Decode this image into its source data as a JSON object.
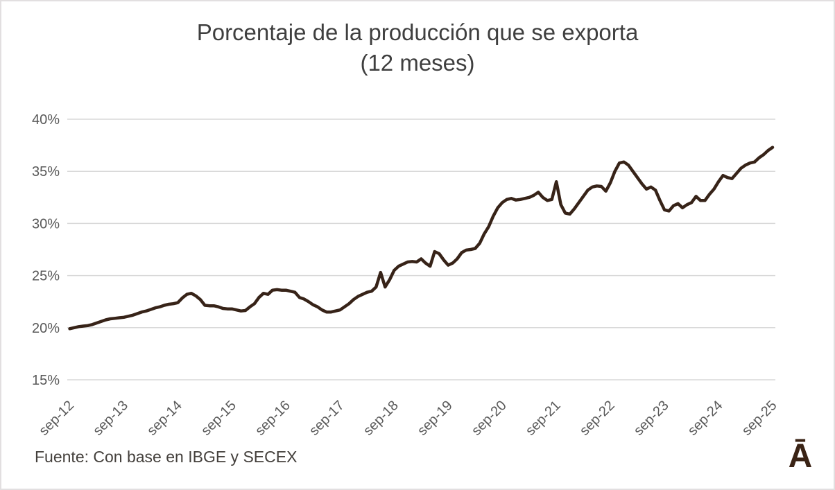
{
  "chart": {
    "title": "Porcentaje de la producción que se exporta",
    "subtitle": "(12 meses)",
    "source": "Fuente: Con base en IBGE y SECEX",
    "logo_glyph": "Ā"
  },
  "chart_data": {
    "type": "line",
    "title": "Porcentaje de la producción que se exporta",
    "subtitle": "(12 meses)",
    "source": "Fuente: Con base en IBGE y SECEX",
    "x_unit": "month",
    "x_start": "sep-12",
    "x_end": "sep-25",
    "x_tick_every_n_points": 12,
    "x_tick_labels": [
      "sep-12",
      "sep-13",
      "sep-14",
      "sep-15",
      "sep-16",
      "sep-17",
      "sep-18",
      "sep-19",
      "sep-20",
      "sep-21",
      "sep-22",
      "sep-23",
      "sep-24",
      "sep-25"
    ],
    "ylim": [
      15,
      40
    ],
    "yticks": [
      40,
      35,
      30,
      25,
      20,
      15
    ],
    "ytick_labels": [
      "40%",
      "35%",
      "30%",
      "25%",
      "20%",
      "15%"
    ],
    "grid": true,
    "legend": false,
    "series": [
      {
        "name": "Porcentaje de la producción que se exporta (12 meses)",
        "values": [
          19.9,
          20.0,
          20.1,
          20.15,
          20.2,
          20.3,
          20.45,
          20.6,
          20.75,
          20.85,
          20.9,
          20.95,
          21.0,
          21.1,
          21.2,
          21.35,
          21.5,
          21.6,
          21.75,
          21.9,
          22.0,
          22.15,
          22.25,
          22.3,
          22.4,
          22.85,
          23.2,
          23.3,
          23.05,
          22.7,
          22.15,
          22.1,
          22.1,
          22.0,
          21.85,
          21.8,
          21.8,
          21.7,
          21.6,
          21.65,
          22.0,
          22.3,
          22.9,
          23.3,
          23.2,
          23.6,
          23.65,
          23.6,
          23.6,
          23.5,
          23.4,
          22.9,
          22.75,
          22.5,
          22.2,
          22.0,
          21.7,
          21.5,
          21.5,
          21.6,
          21.7,
          22.0,
          22.3,
          22.7,
          23.0,
          23.2,
          23.4,
          23.5,
          23.9,
          25.3,
          23.9,
          24.6,
          25.5,
          25.9,
          26.1,
          26.3,
          26.35,
          26.3,
          26.6,
          26.2,
          25.9,
          27.3,
          27.1,
          26.5,
          26.0,
          26.2,
          26.6,
          27.2,
          27.45,
          27.5,
          27.6,
          28.1,
          29.0,
          29.7,
          30.7,
          31.5,
          32.0,
          32.3,
          32.4,
          32.25,
          32.3,
          32.4,
          32.5,
          32.7,
          33.0,
          32.5,
          32.2,
          32.3,
          34.0,
          31.8,
          31.0,
          30.9,
          31.4,
          32.0,
          32.6,
          33.2,
          33.5,
          33.6,
          33.55,
          33.1,
          33.9,
          35.0,
          35.8,
          35.9,
          35.6,
          35.0,
          34.4,
          33.8,
          33.3,
          33.5,
          33.2,
          32.2,
          31.3,
          31.2,
          31.7,
          31.9,
          31.5,
          31.8,
          32.0,
          32.6,
          32.2,
          32.2,
          32.8,
          33.3,
          34.0,
          34.6,
          34.4,
          34.3,
          34.8,
          35.3,
          35.6,
          35.8,
          35.9,
          36.3,
          36.6,
          37.0,
          37.3
        ]
      }
    ],
    "colors": {
      "line": "#372318",
      "grid": "#d9d9d9",
      "axis_labels": "#595959",
      "title": "#3f3f3f",
      "source_text": "#44403c",
      "logo": "#3a2315",
      "border": "#e2dfe0",
      "background": "#ffffff"
    }
  }
}
